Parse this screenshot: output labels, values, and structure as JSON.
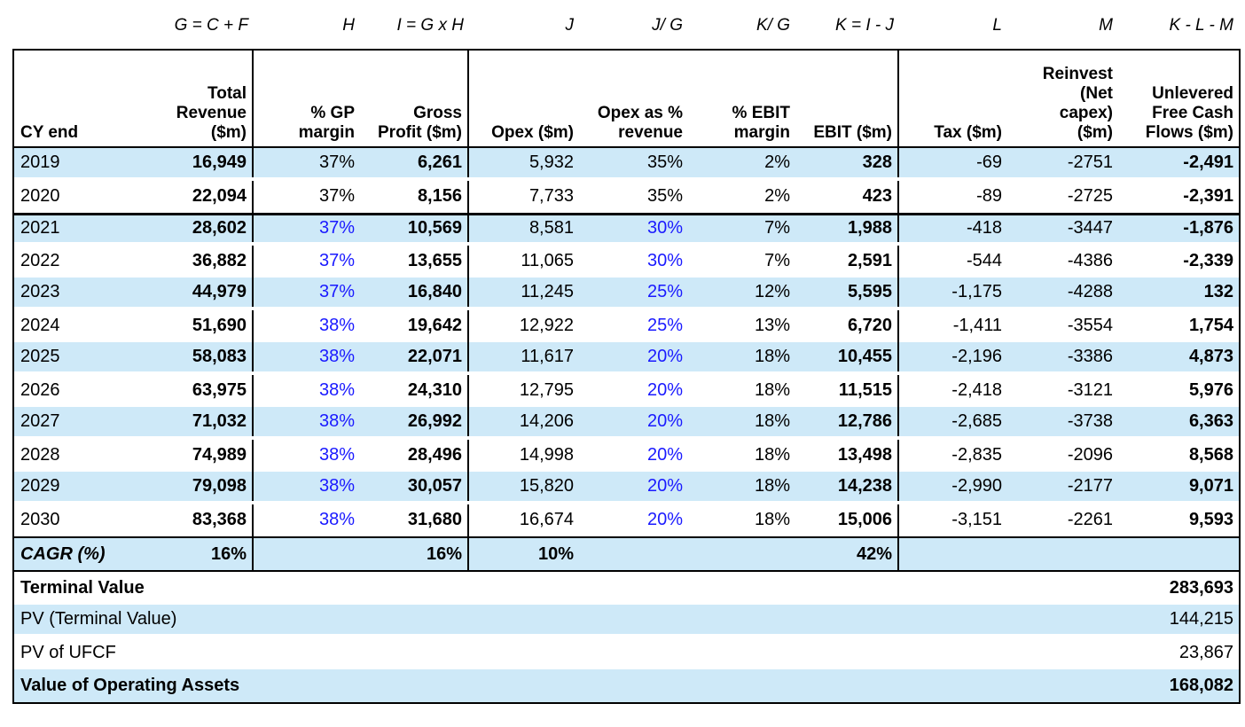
{
  "colors": {
    "band": "#cee9f8",
    "input_blue": "#1a1aff",
    "border": "#000000"
  },
  "formula_row": [
    "G = C + F",
    "H",
    "I = G x H",
    "J",
    "J/ G",
    "K/ G",
    "K = I - J",
    "L",
    "M",
    "K - L - M"
  ],
  "headers": [
    "CY end",
    "Total\nRevenue\n($m)",
    "% GP\nmargin",
    "Gross\nProfit ($m)",
    "Opex ($m)",
    "Opex as %\nrevenue",
    "% EBIT\nmargin",
    "EBIT ($m)",
    "Tax ($m)",
    "Reinvest\n(Net\ncapex)\n($m)",
    "Unlevered\nFree Cash\nFlows ($m)"
  ],
  "rows": [
    {
      "year": "2019",
      "revenue": "16,949",
      "gp_margin": "37%",
      "gp_blue": false,
      "gross_profit": "6,261",
      "opex": "5,932",
      "opex_pct": "35%",
      "opex_blue": false,
      "ebit_margin": "2%",
      "ebit": "328",
      "tax": "-69",
      "reinvest": "-2751",
      "ufcf": "-2,491",
      "shaded": true,
      "divider": false
    },
    {
      "year": "2020",
      "revenue": "22,094",
      "gp_margin": "37%",
      "gp_blue": false,
      "gross_profit": "8,156",
      "opex": "7,733",
      "opex_pct": "35%",
      "opex_blue": false,
      "ebit_margin": "2%",
      "ebit": "423",
      "tax": "-89",
      "reinvest": "-2725",
      "ufcf": "-2,391",
      "shaded": false,
      "divider": false
    },
    {
      "year": "2021",
      "revenue": "28,602",
      "gp_margin": "37%",
      "gp_blue": true,
      "gross_profit": "10,569",
      "opex": "8,581",
      "opex_pct": "30%",
      "opex_blue": true,
      "ebit_margin": "7%",
      "ebit": "1,988",
      "tax": "-418",
      "reinvest": "-3447",
      "ufcf": "-1,876",
      "shaded": true,
      "divider": true
    },
    {
      "year": "2022",
      "revenue": "36,882",
      "gp_margin": "37%",
      "gp_blue": true,
      "gross_profit": "13,655",
      "opex": "11,065",
      "opex_pct": "30%",
      "opex_blue": true,
      "ebit_margin": "7%",
      "ebit": "2,591",
      "tax": "-544",
      "reinvest": "-4386",
      "ufcf": "-2,339",
      "shaded": false,
      "divider": false
    },
    {
      "year": "2023",
      "revenue": "44,979",
      "gp_margin": "37%",
      "gp_blue": true,
      "gross_profit": "16,840",
      "opex": "11,245",
      "opex_pct": "25%",
      "opex_blue": true,
      "ebit_margin": "12%",
      "ebit": "5,595",
      "tax": "-1,175",
      "reinvest": "-4288",
      "ufcf": "132",
      "shaded": true,
      "divider": false
    },
    {
      "year": "2024",
      "revenue": "51,690",
      "gp_margin": "38%",
      "gp_blue": true,
      "gross_profit": "19,642",
      "opex": "12,922",
      "opex_pct": "25%",
      "opex_blue": true,
      "ebit_margin": "13%",
      "ebit": "6,720",
      "tax": "-1,411",
      "reinvest": "-3554",
      "ufcf": "1,754",
      "shaded": false,
      "divider": false
    },
    {
      "year": "2025",
      "revenue": "58,083",
      "gp_margin": "38%",
      "gp_blue": true,
      "gross_profit": "22,071",
      "opex": "11,617",
      "opex_pct": "20%",
      "opex_blue": true,
      "ebit_margin": "18%",
      "ebit": "10,455",
      "tax": "-2,196",
      "reinvest": "-3386",
      "ufcf": "4,873",
      "shaded": true,
      "divider": false
    },
    {
      "year": "2026",
      "revenue": "63,975",
      "gp_margin": "38%",
      "gp_blue": true,
      "gross_profit": "24,310",
      "opex": "12,795",
      "opex_pct": "20%",
      "opex_blue": true,
      "ebit_margin": "18%",
      "ebit": "11,515",
      "tax": "-2,418",
      "reinvest": "-3121",
      "ufcf": "5,976",
      "shaded": false,
      "divider": false
    },
    {
      "year": "2027",
      "revenue": "71,032",
      "gp_margin": "38%",
      "gp_blue": true,
      "gross_profit": "26,992",
      "opex": "14,206",
      "opex_pct": "20%",
      "opex_blue": true,
      "ebit_margin": "18%",
      "ebit": "12,786",
      "tax": "-2,685",
      "reinvest": "-3738",
      "ufcf": "6,363",
      "shaded": true,
      "divider": false
    },
    {
      "year": "2028",
      "revenue": "74,989",
      "gp_margin": "38%",
      "gp_blue": true,
      "gross_profit": "28,496",
      "opex": "14,998",
      "opex_pct": "20%",
      "opex_blue": true,
      "ebit_margin": "18%",
      "ebit": "13,498",
      "tax": "-2,835",
      "reinvest": "-2096",
      "ufcf": "8,568",
      "shaded": false,
      "divider": false
    },
    {
      "year": "2029",
      "revenue": "79,098",
      "gp_margin": "38%",
      "gp_blue": true,
      "gross_profit": "30,057",
      "opex": "15,820",
      "opex_pct": "20%",
      "opex_blue": true,
      "ebit_margin": "18%",
      "ebit": "14,238",
      "tax": "-2,990",
      "reinvest": "-2177",
      "ufcf": "9,071",
      "shaded": true,
      "divider": false
    },
    {
      "year": "2030",
      "revenue": "83,368",
      "gp_margin": "38%",
      "gp_blue": true,
      "gross_profit": "31,680",
      "opex": "16,674",
      "opex_pct": "20%",
      "opex_blue": true,
      "ebit_margin": "18%",
      "ebit": "15,006",
      "tax": "-3,151",
      "reinvest": "-2261",
      "ufcf": "9,593",
      "shaded": false,
      "divider": false
    }
  ],
  "cagr": {
    "label": "CAGR (%)",
    "revenue": "16%",
    "gross_profit": "16%",
    "opex": "10%",
    "ebit": "42%"
  },
  "summary": [
    {
      "label": "Terminal Value",
      "value": "283,693",
      "bold": true,
      "shaded": false
    },
    {
      "label": "PV (Terminal Value)",
      "value": "144,215",
      "bold": false,
      "shaded": true
    },
    {
      "label": "PV of UFCF",
      "value": "23,867",
      "bold": false,
      "shaded": false
    },
    {
      "label": "Value of Operating Assets",
      "value": "168,082",
      "bold": true,
      "shaded": true
    }
  ]
}
